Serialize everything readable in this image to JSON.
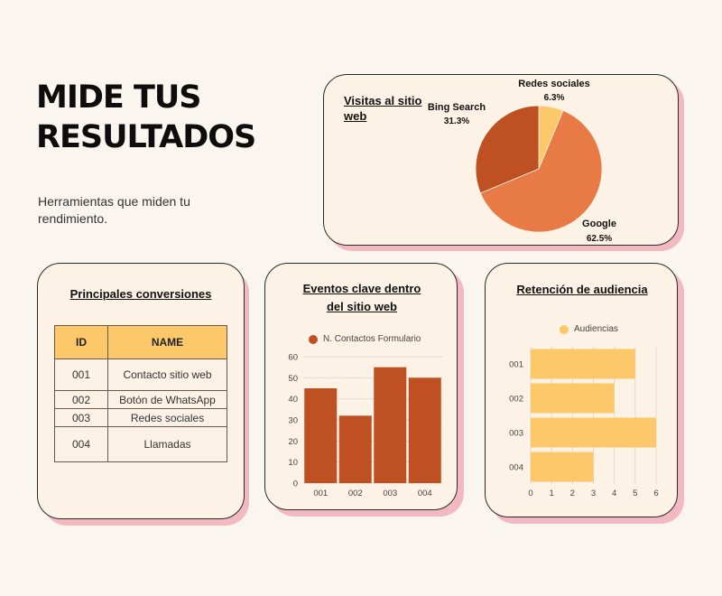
{
  "header": {
    "title_line1": "MIDE TUS",
    "title_line2": "RESULTADOS",
    "subtitle": "Herramientas que miden tu rendimiento."
  },
  "visits_card": {
    "title_line1": "Visitas al sitio",
    "title_line2": "web"
  },
  "conversions_card": {
    "title": "Principales conversiones",
    "columns": [
      "ID",
      "NAME"
    ],
    "rows": [
      [
        "001",
        "Contacto sitio web"
      ],
      [
        "002",
        "Botón de WhatsApp"
      ],
      [
        "003",
        "Redes sociales"
      ],
      [
        "004",
        "Llamadas"
      ]
    ],
    "header_color": "#fcc86a"
  },
  "events_card": {
    "title_line1": "Eventos clave dentro",
    "title_line2": "del sitio web"
  },
  "retention_card": {
    "title": "Retención de audiencia"
  },
  "chart_data": [
    {
      "type": "pie",
      "labels": [
        "Google",
        "Bing Search",
        "Redes sociales"
      ],
      "values": [
        62.5,
        31.3,
        6.3
      ],
      "value_labels": [
        "62.5%",
        "31.3%",
        "6.3%"
      ],
      "colors": [
        "#e87b45",
        "#bf5022",
        "#fcc86a"
      ]
    },
    {
      "type": "bar",
      "orientation": "vertical",
      "categories": [
        "001",
        "002",
        "003",
        "004"
      ],
      "series": [
        {
          "name": "N. Contactos Formulario",
          "values": [
            45,
            32,
            55,
            50
          ]
        }
      ],
      "ylim": [
        0,
        60
      ],
      "yticks": [
        0,
        10,
        20,
        30,
        40,
        50,
        60
      ],
      "grid": true,
      "legend": "top",
      "color": "#bf5022"
    },
    {
      "type": "bar",
      "orientation": "horizontal",
      "categories": [
        "001",
        "002",
        "003",
        "004"
      ],
      "series": [
        {
          "name": "Audiencias",
          "values": [
            5,
            4,
            6,
            3
          ]
        }
      ],
      "xlim": [
        0,
        6
      ],
      "xticks": [
        0,
        1,
        2,
        3,
        4,
        5,
        6
      ],
      "grid": true,
      "legend": "top",
      "color": "#fcc86a"
    }
  ]
}
